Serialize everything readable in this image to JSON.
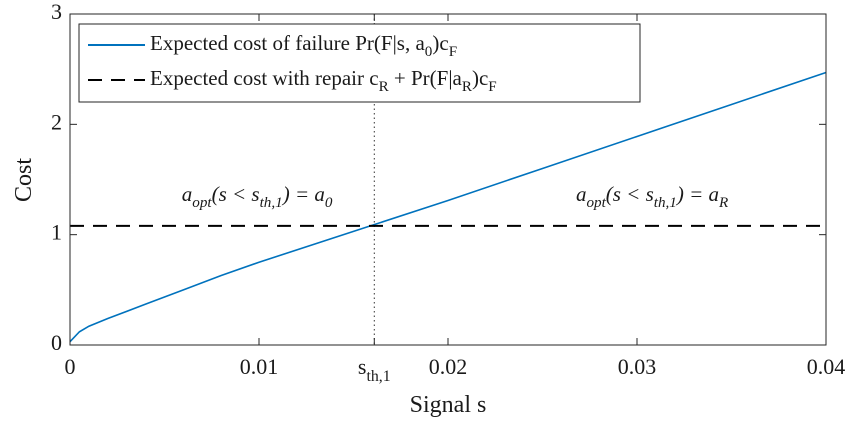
{
  "chart_data": {
    "type": "line",
    "xlabel": "Signal s",
    "ylabel": "Cost",
    "x": [
      0,
      0.0005,
      0.001,
      0.002,
      0.004,
      0.006,
      0.008,
      0.01,
      0.015,
      0.02,
      0.025,
      0.03,
      0.035,
      0.04
    ],
    "series": [
      {
        "name": "Expected cost of failure Pr(F|s, a_{0})c_{F}",
        "color": "#0072bd",
        "dash": "solid",
        "values": [
          0.03,
          0.12,
          0.17,
          0.24,
          0.37,
          0.5,
          0.63,
          0.75,
          1.03,
          1.31,
          1.6,
          1.89,
          2.18,
          2.47
        ]
      },
      {
        "name": "Expected cost with repair c_{R} + Pr(F|a_{R})c_{F}",
        "color": "#000000",
        "dash": "dashed",
        "values": [
          1.08,
          1.08,
          1.08,
          1.08,
          1.08,
          1.08,
          1.08,
          1.08,
          1.08,
          1.08,
          1.08,
          1.08,
          1.08,
          1.08
        ]
      }
    ],
    "threshold": 0.0161,
    "annotations": [
      {
        "text": "a_{opt}(s < s_{th,1}) = a_{0}",
        "x": 0.0099,
        "y": 1.35
      },
      {
        "text": "a_{opt}(s < s_{th,1}) = a_{R}",
        "x": 0.0308,
        "y": 1.35
      }
    ],
    "xlim": [
      0,
      0.04
    ],
    "ylim": [
      0,
      3
    ],
    "xticks": [
      0,
      0.01,
      {
        "value": 0.0161,
        "label": "s_{th,1}"
      },
      0.02,
      0.03,
      0.04
    ],
    "yticks": [
      0,
      1,
      2,
      3
    ],
    "legend": "upper left"
  }
}
